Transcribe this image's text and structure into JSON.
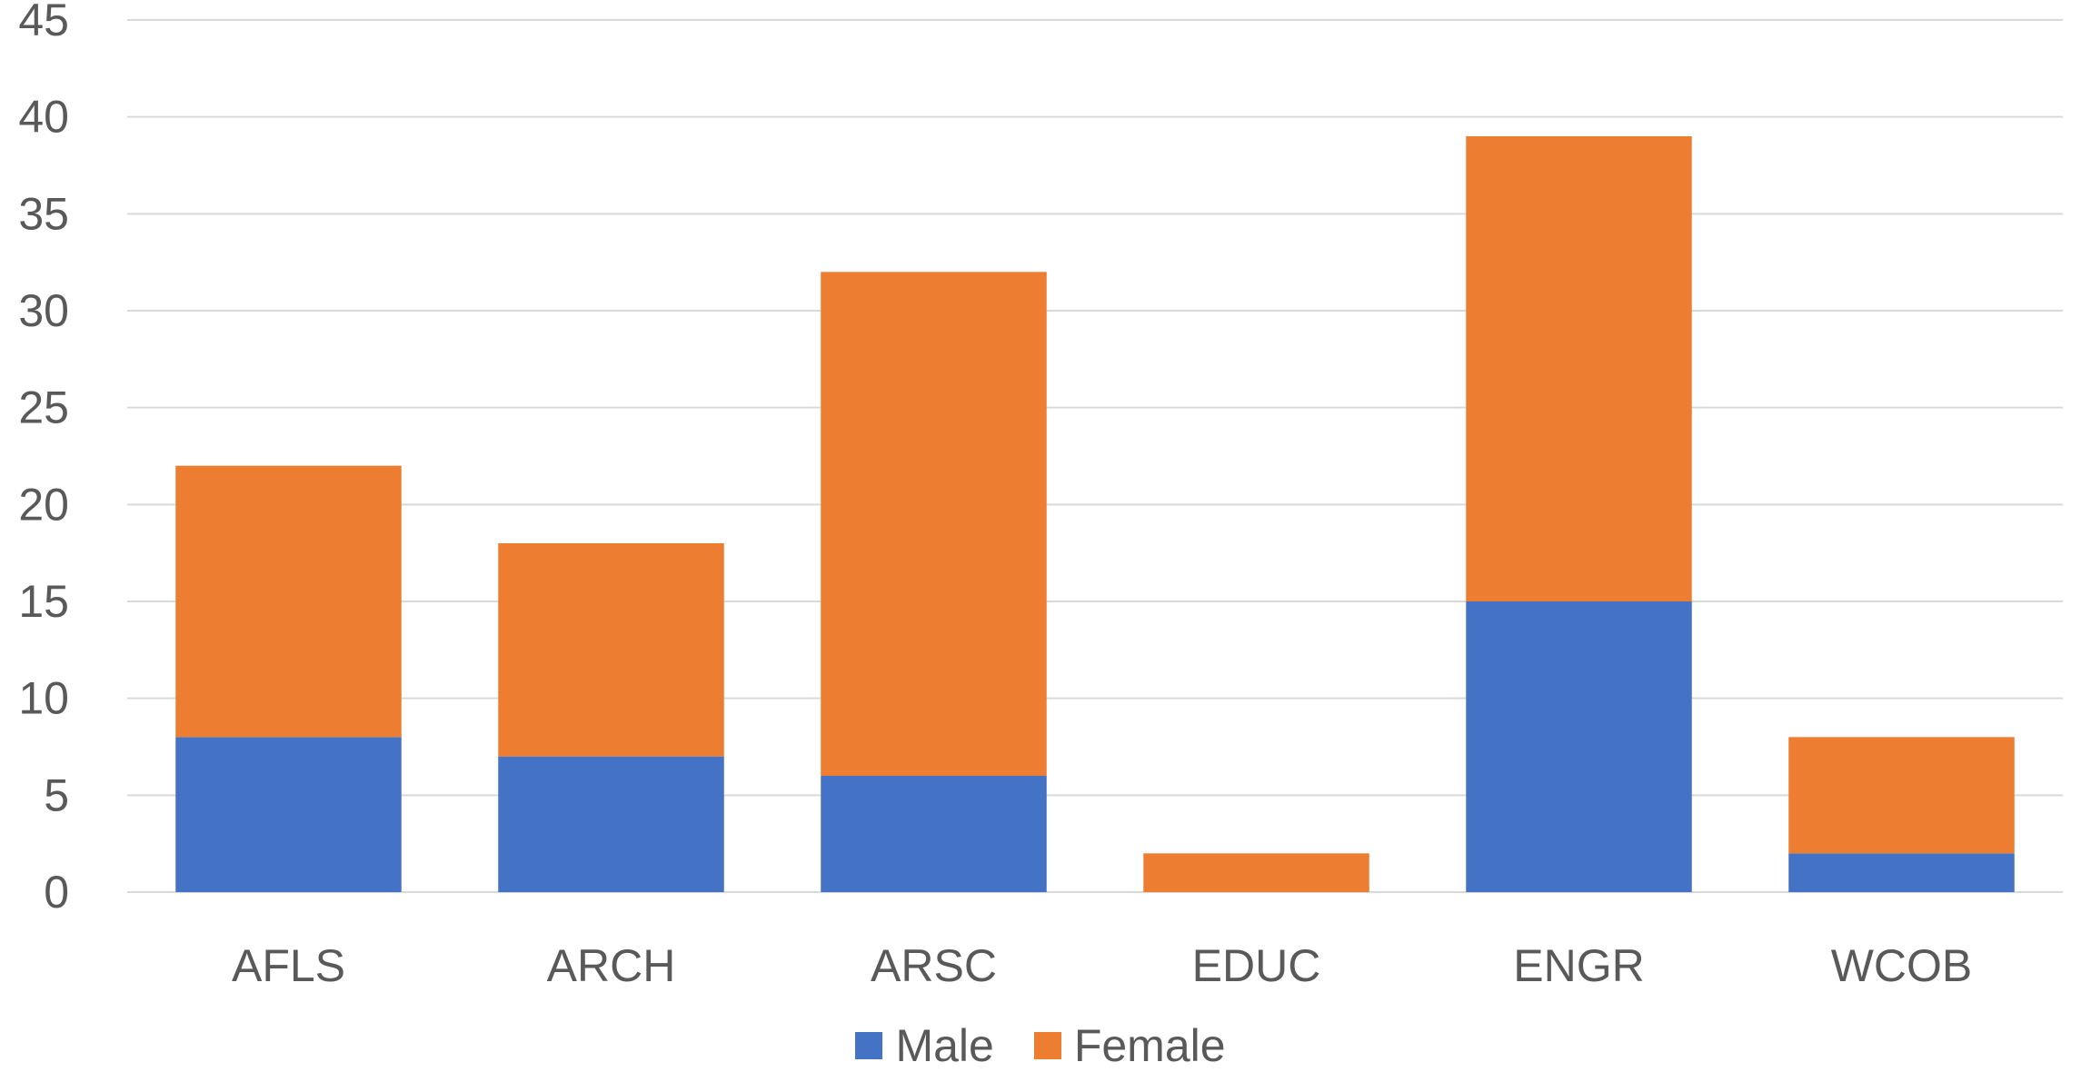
{
  "chart_data": {
    "type": "bar",
    "stacked": true,
    "title": "",
    "xlabel": "",
    "ylabel": "",
    "categories": [
      "AFLS",
      "ARCH",
      "ARSC",
      "EDUC",
      "ENGR",
      "WCOB"
    ],
    "series": [
      {
        "name": "Male",
        "color": "#4472C4",
        "values": [
          8,
          7,
          6,
          0,
          15,
          2
        ]
      },
      {
        "name": "Female",
        "color": "#ED7D31",
        "values": [
          14,
          11,
          26,
          2,
          24,
          6
        ]
      }
    ],
    "ylim": [
      0,
      45
    ],
    "yticks": [
      0,
      5,
      10,
      15,
      20,
      25,
      30,
      35,
      40,
      45
    ],
    "grid": true,
    "legend_position": "bottom"
  }
}
